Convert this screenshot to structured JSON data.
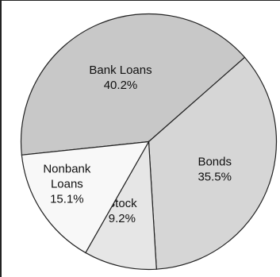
{
  "chart_data": {
    "type": "pie",
    "title": "",
    "slices": [
      {
        "label": "Bank Loans",
        "label_lines": [
          "Bank Loans"
        ],
        "value": 40.2,
        "value_text": "40.2%",
        "color": "#c8c8c8"
      },
      {
        "label": "Bonds",
        "label_lines": [
          "Bonds"
        ],
        "value": 35.5,
        "value_text": "35.5%",
        "color": "#d6d6d6"
      },
      {
        "label": "Stock",
        "label_lines": [
          "Stock"
        ],
        "value": 9.2,
        "value_text": "9.2%",
        "color": "#e6e6e6"
      },
      {
        "label": "Nonbank Loans",
        "label_lines": [
          "Nonbank",
          "Loans"
        ],
        "value": 15.1,
        "value_text": "15.1%",
        "color": "#f8f8f8"
      }
    ],
    "legend": "none",
    "labels_inside": true
  }
}
